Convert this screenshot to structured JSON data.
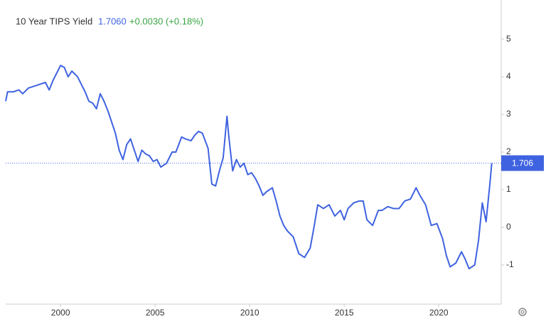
{
  "chart_data": {
    "type": "line",
    "title": "10 Year TIPS Yield",
    "last_price": {
      "value": 1.706,
      "label": "1.7060"
    },
    "change": "+0.0030 (+0.18%)",
    "reference_line": 1.706,
    "x": [
      1997.1,
      1997.2,
      1997.5,
      1997.8,
      1998.0,
      1998.3,
      1998.6,
      1998.9,
      1999.2,
      1999.4,
      1999.6,
      1999.8,
      2000.0,
      2000.2,
      2000.4,
      2000.6,
      2000.9,
      2001.1,
      2001.3,
      2001.5,
      2001.7,
      2001.9,
      2002.1,
      2002.3,
      2002.5,
      2002.7,
      2002.9,
      2003.1,
      2003.3,
      2003.5,
      2003.7,
      2003.9,
      2004.1,
      2004.3,
      2004.5,
      2004.7,
      2004.9,
      2005.1,
      2005.3,
      2005.6,
      2005.9,
      2006.1,
      2006.4,
      2006.6,
      2006.9,
      2007.1,
      2007.3,
      2007.5,
      2007.8,
      2008.0,
      2008.2,
      2008.4,
      2008.6,
      2008.8,
      2008.9,
      2009.1,
      2009.3,
      2009.5,
      2009.7,
      2009.9,
      2010.1,
      2010.3,
      2010.5,
      2010.7,
      2010.9,
      2011.2,
      2011.4,
      2011.6,
      2011.8,
      2012.0,
      2012.3,
      2012.6,
      2012.9,
      2013.2,
      2013.4,
      2013.6,
      2013.9,
      2014.2,
      2014.5,
      2014.8,
      2015.0,
      2015.2,
      2015.5,
      2015.8,
      2016.0,
      2016.2,
      2016.5,
      2016.8,
      2017.0,
      2017.3,
      2017.6,
      2017.9,
      2018.2,
      2018.5,
      2018.8,
      2019.0,
      2019.3,
      2019.6,
      2019.9,
      2020.2,
      2020.4,
      2020.6,
      2020.9,
      2021.2,
      2021.4,
      2021.6,
      2021.9,
      2022.1,
      2022.3,
      2022.5,
      2022.7,
      2022.8
    ],
    "series": [
      {
        "name": "10 Year TIPS Yield",
        "color": "#3f63e0",
        "values": [
          3.35,
          3.6,
          3.6,
          3.65,
          3.55,
          3.7,
          3.75,
          3.8,
          3.85,
          3.65,
          3.9,
          4.1,
          4.3,
          4.25,
          4.0,
          4.15,
          4.0,
          3.8,
          3.6,
          3.35,
          3.3,
          3.15,
          3.55,
          3.35,
          3.1,
          2.8,
          2.5,
          2.05,
          1.8,
          2.2,
          2.35,
          2.05,
          1.75,
          2.05,
          1.95,
          1.9,
          1.75,
          1.8,
          1.6,
          1.7,
          2.0,
          2.0,
          2.4,
          2.35,
          2.3,
          2.45,
          2.55,
          2.5,
          2.1,
          1.15,
          1.1,
          1.5,
          1.85,
          2.95,
          2.4,
          1.5,
          1.8,
          1.6,
          1.7,
          1.4,
          1.45,
          1.3,
          1.1,
          0.85,
          0.95,
          1.05,
          0.7,
          0.3,
          0.05,
          -0.1,
          -0.25,
          -0.7,
          -0.8,
          -0.55,
          0.0,
          0.6,
          0.5,
          0.6,
          0.3,
          0.45,
          0.2,
          0.5,
          0.65,
          0.7,
          0.7,
          0.2,
          0.05,
          0.45,
          0.45,
          0.55,
          0.5,
          0.5,
          0.7,
          0.75,
          1.05,
          0.85,
          0.6,
          0.05,
          0.1,
          -0.3,
          -0.75,
          -1.05,
          -0.95,
          -0.65,
          -0.85,
          -1.1,
          -1.0,
          -0.35,
          0.65,
          0.15,
          1.15,
          1.706
        ]
      }
    ],
    "xlim": [
      1997.1,
      2023.3
    ],
    "xticks": [
      2000,
      2005,
      2010,
      2015,
      2020
    ],
    "ylim": [
      -2.04,
      6.04
    ],
    "yticks": [
      -1,
      0,
      1,
      2,
      3,
      4,
      5
    ]
  }
}
